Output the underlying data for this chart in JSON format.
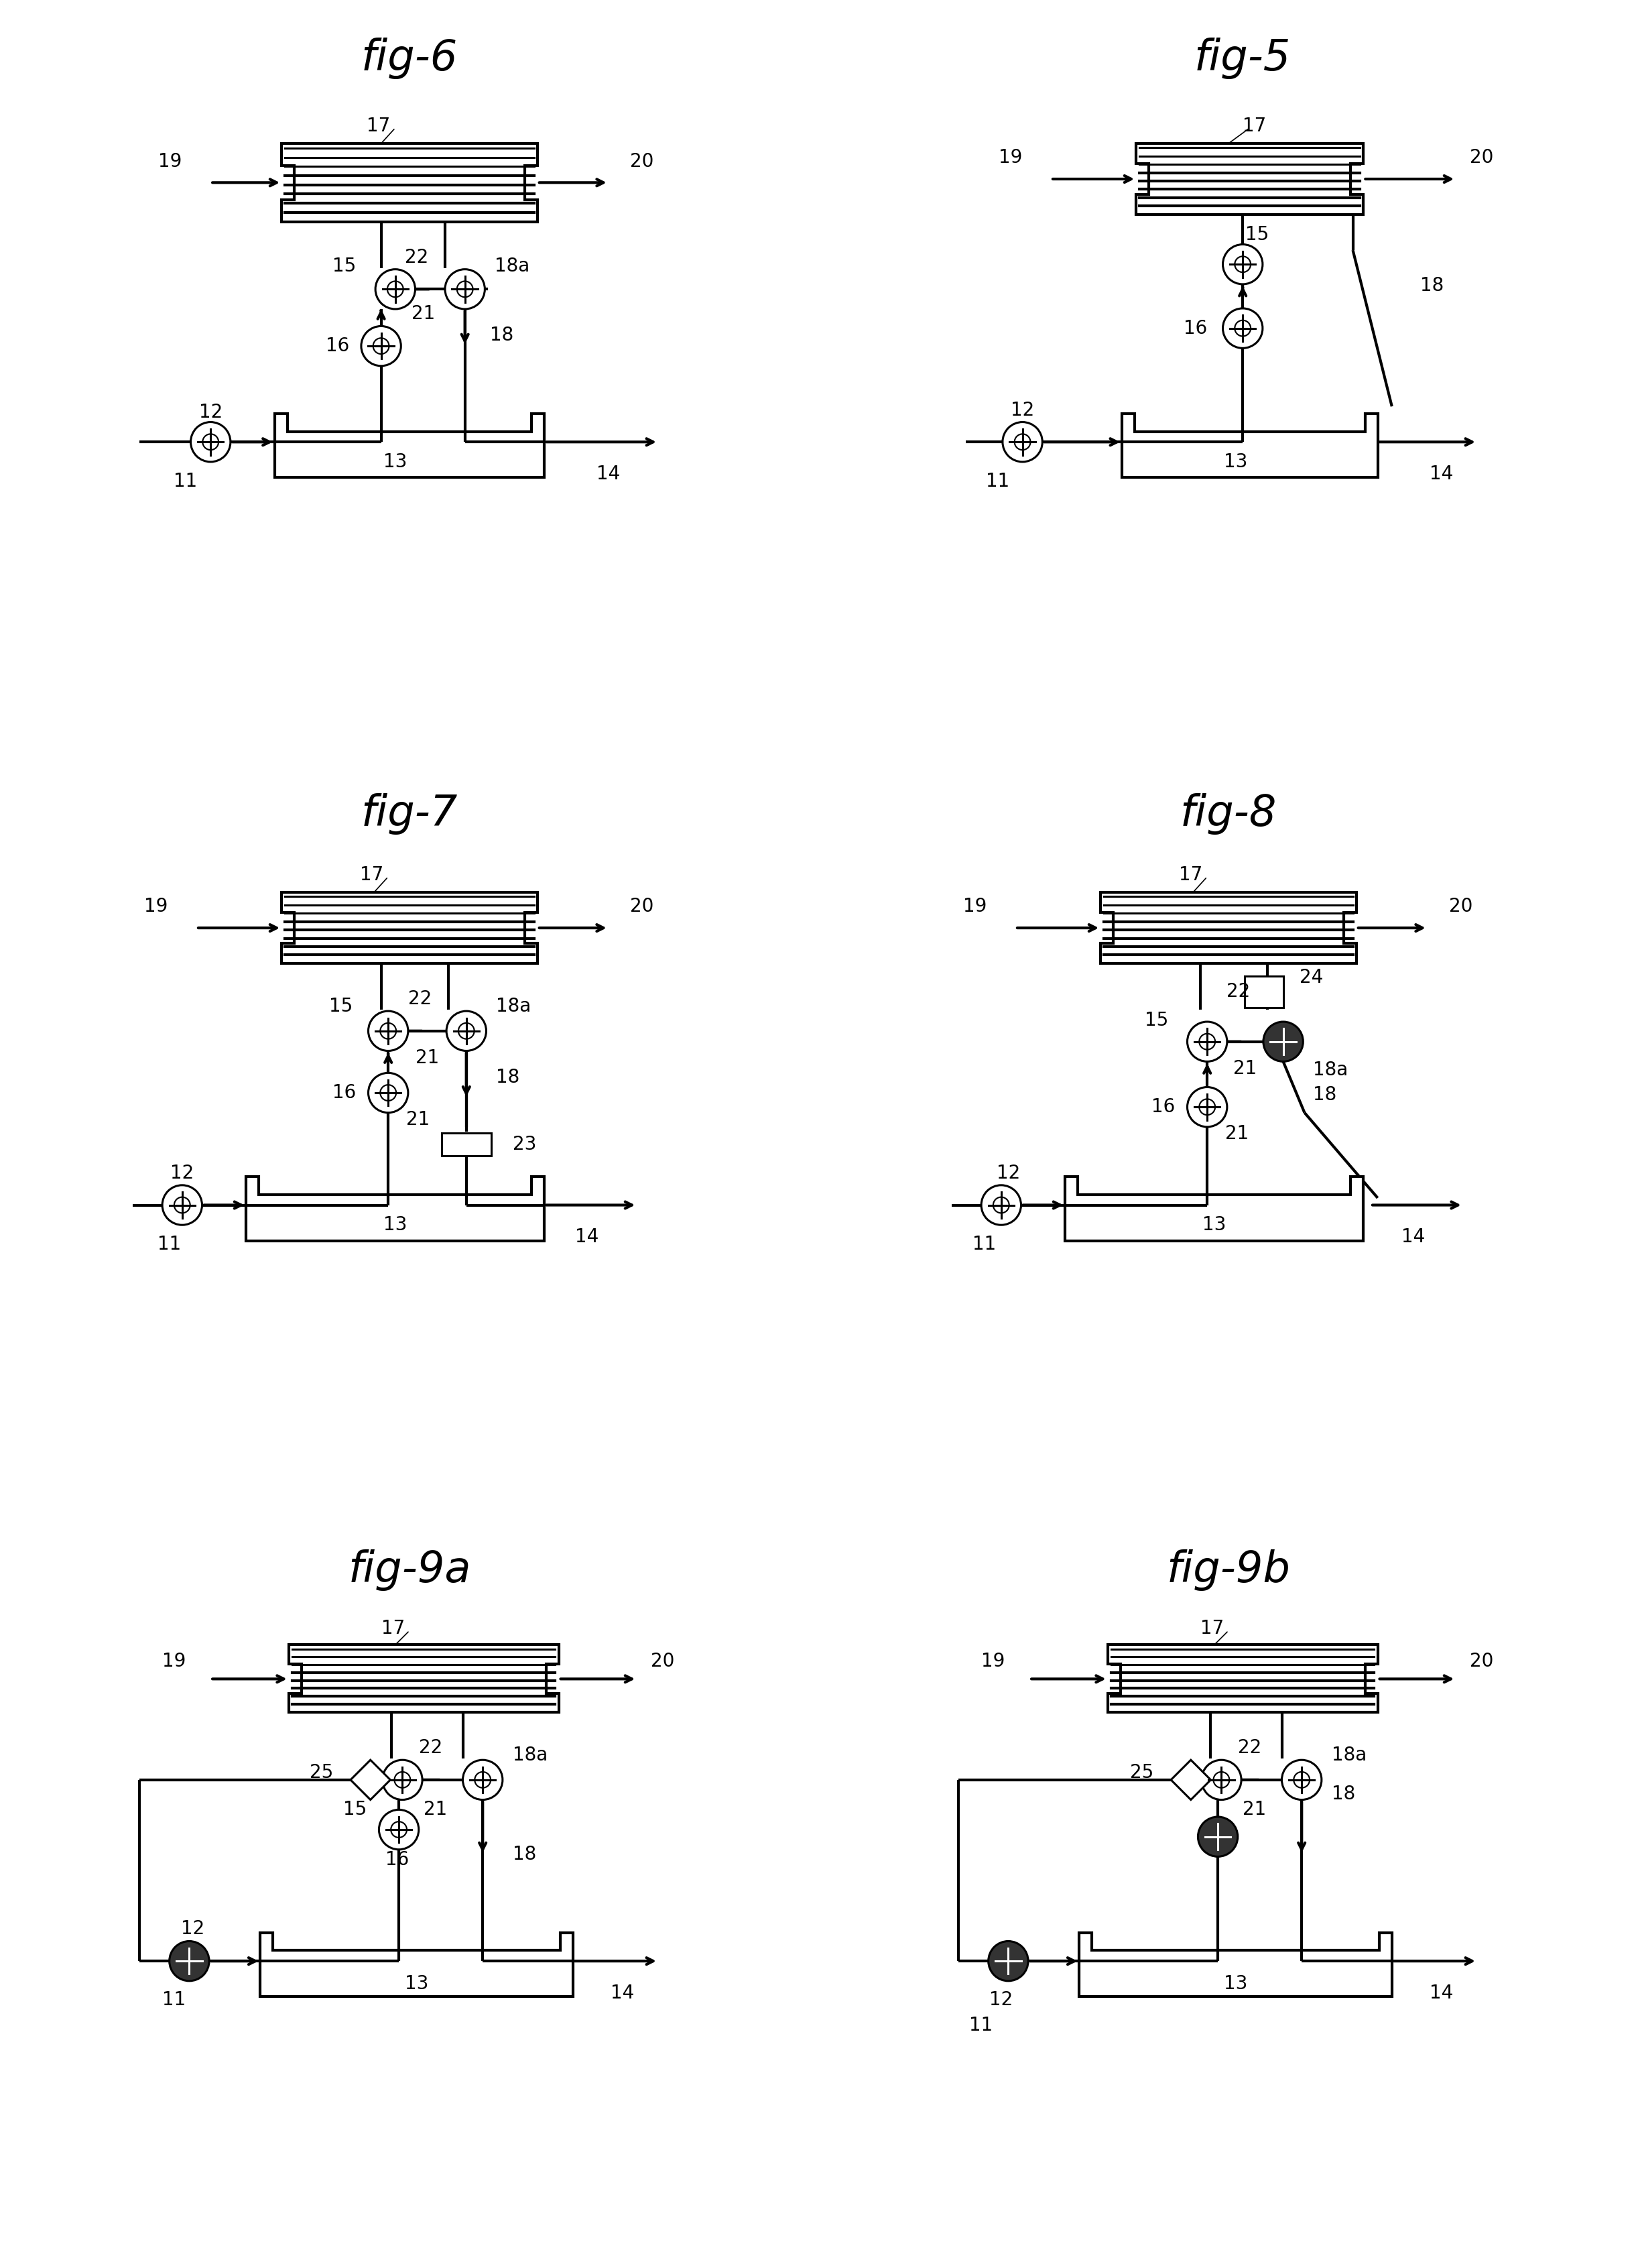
{
  "bg": "#ffffff",
  "lc": "#000000",
  "panels": [
    {
      "title": "fig-6",
      "col": 0,
      "row": 0
    },
    {
      "title": "fig-5",
      "col": 1,
      "row": 0
    },
    {
      "title": "fig-7",
      "col": 0,
      "row": 1
    },
    {
      "title": "fig-8",
      "col": 1,
      "row": 1
    },
    {
      "title": "fig-9a",
      "col": 0,
      "row": 2
    },
    {
      "title": "fig-9b",
      "col": 1,
      "row": 2
    }
  ]
}
